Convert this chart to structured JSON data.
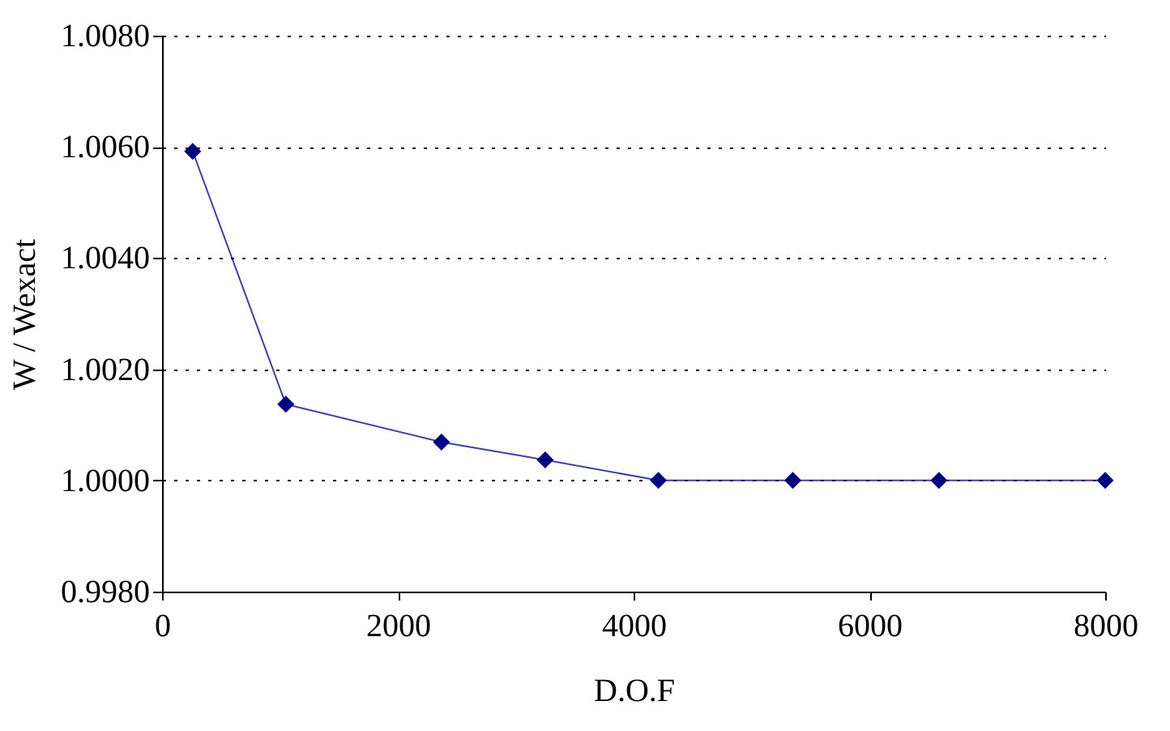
{
  "chart_data": {
    "type": "line",
    "xlabel": "D.O.F",
    "ylabel": "W / Wexact",
    "x": [
      260,
      1050,
      2370,
      3250,
      4210,
      5350,
      6590,
      8000
    ],
    "series": [
      {
        "color": "#000080",
        "values": [
          1.00592,
          1.00137,
          1.00069,
          1.00037,
          1.0,
          1.0,
          1.0,
          1.0
        ]
      }
    ],
    "xlim": [
      0,
      8000
    ],
    "xticks": [
      0,
      2000,
      4000,
      6000,
      8000
    ],
    "ylim": [
      0.998,
      1.008
    ],
    "yticks": [
      {
        "value": 0.998,
        "label": "0.9980"
      },
      {
        "value": 1.0,
        "label": "1.0000"
      },
      {
        "value": 1.002,
        "label": "1.0020"
      },
      {
        "value": 1.004,
        "label": "1.0040"
      },
      {
        "value": 1.006,
        "label": "1.0060"
      },
      {
        "value": 1.008,
        "label": "1.0080"
      }
    ],
    "grid": "y",
    "marker": "diamond",
    "line_style": "solid"
  }
}
